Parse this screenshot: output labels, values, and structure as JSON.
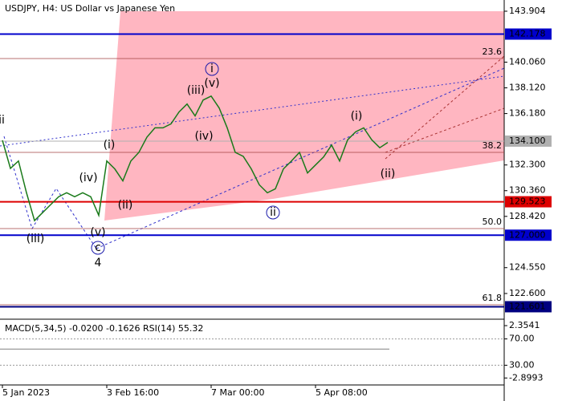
{
  "chart_data": {
    "type": "line",
    "title": "USDJPY, H4:  US Dollar vs Japanese Yen",
    "categories": [
      "5 Jan 2023",
      null,
      null,
      null,
      null,
      null,
      null,
      null,
      null,
      null,
      null,
      null,
      null,
      "3 Feb 16:00",
      null,
      null,
      null,
      null,
      null,
      null,
      null,
      null,
      null,
      null,
      null,
      null,
      "7 Mar 00:00",
      null,
      null,
      null,
      null,
      null,
      null,
      null,
      null,
      null,
      null,
      null,
      null,
      "5 Apr 08:00",
      null,
      null,
      null,
      null,
      null,
      null,
      null,
      null,
      null
    ],
    "series": [
      {
        "name": "USDJPY",
        "color": "#1a7a1a",
        "values": [
          134.16,
          132.04,
          132.6,
          130.2,
          128.1,
          128.7,
          129.3,
          129.9,
          130.2,
          129.9,
          130.2,
          129.9,
          128.5,
          132.6,
          132.0,
          131.1,
          132.6,
          133.25,
          134.4,
          135.1,
          135.1,
          135.4,
          136.3,
          136.9,
          136.0,
          137.2,
          137.5,
          136.6,
          135.1,
          133.25,
          132.95,
          132.0,
          130.8,
          130.2,
          130.5,
          132.0,
          132.6,
          133.25,
          131.7,
          132.3,
          132.9,
          133.8,
          132.6,
          134.2,
          134.8,
          135.1,
          134.2,
          133.6,
          134.0
        ]
      }
    ],
    "ylim": [
      120.66,
      144.75
    ],
    "yticks": [
      143.904,
      {
        "value": 140.06,
        "label": "140.060"
      },
      {
        "value": 138.12,
        "label": "138.120"
      },
      {
        "value": 136.18,
        "label": "136.180"
      },
      {
        "value": 132.3,
        "label": "132.300"
      },
      {
        "value": 130.36,
        "label": "130.360"
      },
      {
        "value": 128.42,
        "label": "128.420"
      },
      {
        "value": 124.55,
        "label": "124.550"
      },
      {
        "value": 122.6,
        "label": "122.600"
      }
    ],
    "levels": [
      {
        "tick": 142.178,
        "color": "#0000cc"
      },
      {
        "tick": {
          "value": 134.1,
          "label": "134.100"
        },
        "color": "#b0b0b0"
      },
      {
        "tick": 129.523,
        "color": "#dd0000"
      },
      {
        "tick": {
          "value": 127.0,
          "label": "127.000"
        },
        "color": "#0000cc"
      },
      {
        "tick": 121.601,
        "color": "#000080"
      }
    ],
    "fib_levels": [
      {
        "ratio": "23.6",
        "level": 140.33
      },
      {
        "ratio": "38.2",
        "level": 133.25
      },
      {
        "ratio": "50.0",
        "level": 127.5
      },
      {
        "ratio": "61.8",
        "level": 121.75
      }
    ],
    "annotations": [
      "ii",
      "(iii)",
      "(iv)",
      "(v)",
      "c",
      "4",
      "(i)",
      "(ii)",
      "i",
      "(iii)",
      "(v)",
      "(iv)",
      "ii",
      "(i)",
      "(ii)"
    ],
    "indicator": {
      "label": "MACD(5,34,5) -0.0200 -0.1626 RSI(14) 55.32",
      "ticks": [
        2.3541,
        {
          "value": 70,
          "label": "70.00"
        },
        {
          "value": 30,
          "label": "30.00"
        },
        -2.8993
      ],
      "ylim": [
        -3.6,
        3.0
      ]
    }
  }
}
